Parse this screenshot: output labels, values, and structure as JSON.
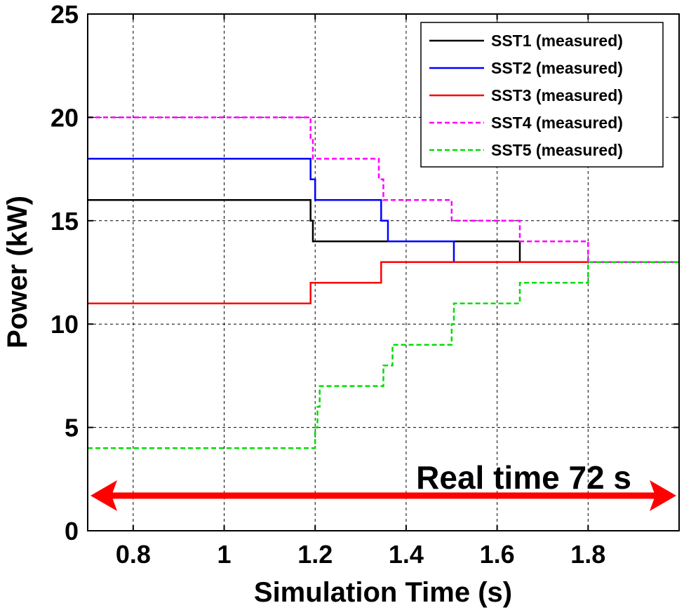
{
  "chart_data": {
    "type": "line",
    "xlabel": "Simulation Time (s)",
    "ylabel": "Power (kW)",
    "xlim": [
      0.7,
      2.0
    ],
    "ylim": [
      0,
      25
    ],
    "xticks": [
      0.8,
      1.0,
      1.2,
      1.4,
      1.6,
      1.8
    ],
    "xtick_labels": [
      "0.8",
      "1",
      "1.2",
      "1.4",
      "1.6",
      "1.8"
    ],
    "yticks": [
      0,
      5,
      10,
      15,
      20,
      25
    ],
    "ytick_labels": [
      "0",
      "5",
      "10",
      "15",
      "20",
      "25"
    ],
    "grid": true,
    "legend_position": "top-right",
    "series": [
      {
        "name": "SST1 (measured)",
        "color": "#000000",
        "dash": "solid",
        "points": [
          [
            0.7,
            16
          ],
          [
            1.19,
            16
          ],
          [
            1.19,
            15
          ],
          [
            1.195,
            15
          ],
          [
            1.195,
            14
          ],
          [
            1.65,
            14
          ],
          [
            1.65,
            13
          ],
          [
            2.0,
            13
          ]
        ]
      },
      {
        "name": "SST2 (measured)",
        "color": "#0000ff",
        "dash": "solid",
        "points": [
          [
            0.7,
            18
          ],
          [
            1.19,
            18
          ],
          [
            1.19,
            17
          ],
          [
            1.2,
            17
          ],
          [
            1.2,
            16
          ],
          [
            1.21,
            16
          ],
          [
            1.21,
            16
          ],
          [
            1.345,
            16
          ],
          [
            1.345,
            15
          ],
          [
            1.36,
            15
          ],
          [
            1.36,
            14
          ],
          [
            1.505,
            14
          ],
          [
            1.505,
            13
          ],
          [
            2.0,
            13
          ]
        ]
      },
      {
        "name": "SST3 (measured)",
        "color": "#ff0000",
        "dash": "solid",
        "points": [
          [
            0.7,
            11
          ],
          [
            1.19,
            11
          ],
          [
            1.19,
            12
          ],
          [
            1.345,
            12
          ],
          [
            1.345,
            13
          ],
          [
            2.0,
            13
          ]
        ]
      },
      {
        "name": "SST4 (measured)",
        "color": "#ff00ff",
        "dash": "dashed",
        "points": [
          [
            0.7,
            20
          ],
          [
            1.19,
            20
          ],
          [
            1.19,
            19
          ],
          [
            1.195,
            19
          ],
          [
            1.195,
            18
          ],
          [
            1.34,
            18
          ],
          [
            1.34,
            17
          ],
          [
            1.35,
            17
          ],
          [
            1.35,
            16
          ],
          [
            1.5,
            16
          ],
          [
            1.5,
            15
          ],
          [
            1.65,
            15
          ],
          [
            1.65,
            14
          ],
          [
            1.8,
            14
          ],
          [
            1.8,
            13
          ],
          [
            2.0,
            13
          ]
        ]
      },
      {
        "name": "SST5 (measured)",
        "color": "#00dd00",
        "dash": "dashed",
        "points": [
          [
            0.7,
            4
          ],
          [
            1.2,
            4
          ],
          [
            1.2,
            5
          ],
          [
            1.205,
            5
          ],
          [
            1.205,
            6
          ],
          [
            1.21,
            6
          ],
          [
            1.21,
            7
          ],
          [
            1.35,
            7
          ],
          [
            1.35,
            8
          ],
          [
            1.37,
            8
          ],
          [
            1.37,
            9
          ],
          [
            1.5,
            9
          ],
          [
            1.5,
            10
          ],
          [
            1.505,
            10
          ],
          [
            1.505,
            11
          ],
          [
            1.65,
            11
          ],
          [
            1.65,
            12
          ],
          [
            1.8,
            12
          ],
          [
            1.8,
            13
          ],
          [
            2.0,
            13
          ]
        ]
      }
    ],
    "annotation": {
      "text": "Real time 72 s",
      "arrow_color": "#ff0000",
      "arrow_y": 1.7,
      "arrow_x_range": [
        0.7,
        2.0
      ]
    }
  }
}
